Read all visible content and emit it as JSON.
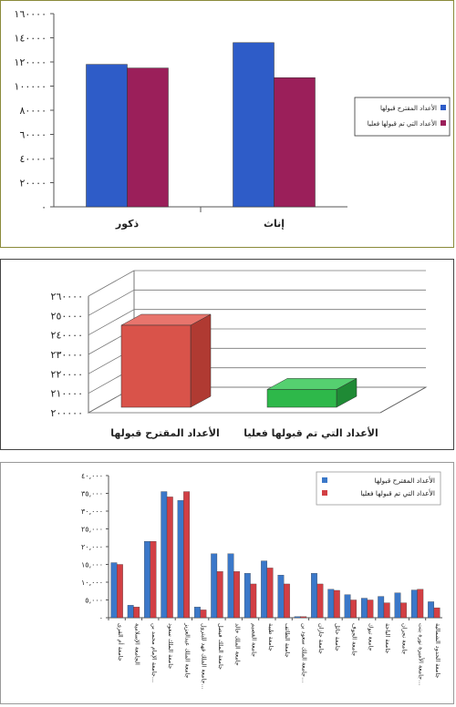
{
  "colors": {
    "blue": "#2e5cc8",
    "maroon": "#9b1f5a",
    "red3d": "#d9534a",
    "green3d": "#2eb84a",
    "blue3": "#3b78c9",
    "red3": "#d23f44"
  },
  "chart_data": [
    {
      "type": "bar",
      "categories": [
        "ذكور",
        "إناث"
      ],
      "series": [
        {
          "name": "الأعداد المقترح قبولها",
          "values": [
            118000,
            136000
          ]
        },
        {
          "name": "الأعداد التي تم قبولها فعليا",
          "values": [
            115000,
            107000
          ]
        }
      ],
      "ylim": [
        0,
        160000
      ],
      "yticks": [
        "٠",
        "٢٠٠٠٠",
        "٤٠٠٠٠",
        "٦٠٠٠٠",
        "٨٠٠٠٠",
        "١٠٠٠٠٠",
        "١٢٠٠٠٠",
        "١٤٠٠٠٠",
        "١٦٠٠٠٠"
      ],
      "legend": "right",
      "grid": false
    },
    {
      "type": "bar",
      "categories": [
        "الأعداد المقترح قبولها",
        "الأعداد التي تم قبولها فعليا"
      ],
      "values": [
        245000,
        212000
      ],
      "ylim": [
        200000,
        260000
      ],
      "yticks": [
        "٢٠٠٠٠٠",
        "٢١٠٠٠٠",
        "٢٢٠٠٠٠",
        "٢٣٠٠٠٠",
        "٢٤٠٠٠٠",
        "٢٥٠٠٠٠",
        "٢٦٠٠٠٠"
      ],
      "legend": "none",
      "grid": true
    },
    {
      "type": "bar",
      "categories": [
        "جامعة أم القرى",
        "الجامعة الإسلامية",
        "جامعة الإمام محمد بن...",
        "جامعة الملك سعود",
        "جامعة الملك عبدالعزيز",
        "جامعة الملك فهد للبترول...",
        "جامعة الملك فيصل",
        "جامعة الملك خالد",
        "جامعة القصيم",
        "جامعة طيبة",
        "جامعة الطائف",
        "جامعة الملك سعود بن...",
        "جامعة جازان",
        "جامعة حائل",
        "جامعة الجوف",
        "جامعة تبوك",
        "جامعة الباحة",
        "جامعة نجران",
        "جامعة الأميرة نورة بنت...",
        "جامعة الحدود الشمالية"
      ],
      "series": [
        {
          "name": "الأعداد المقترح قبولها",
          "values": [
            15500,
            3500,
            21500,
            35500,
            33000,
            3000,
            18000,
            18000,
            12500,
            16000,
            12000,
            300,
            12500,
            8000,
            6500,
            5500,
            6000,
            7000,
            7800,
            4500
          ]
        },
        {
          "name": "الأعداد التي تم قبولها فعليا",
          "values": [
            15000,
            3000,
            21500,
            34000,
            35500,
            2200,
            13000,
            13000,
            9500,
            14000,
            9500,
            300,
            9500,
            7700,
            5000,
            5000,
            4200,
            4200,
            8000,
            2800
          ]
        }
      ],
      "ylim": [
        0,
        40000
      ],
      "yticks": [
        "٠",
        "٥,٠٠٠",
        "١٠,٠٠٠",
        "١٥,٠٠٠",
        "٢٠,٠٠٠",
        "٢٥,٠٠٠",
        "٣٠,٠٠٠",
        "٣٥,٠٠٠",
        "٤٠,٠٠٠"
      ],
      "legend": "top-right",
      "grid": false
    }
  ]
}
